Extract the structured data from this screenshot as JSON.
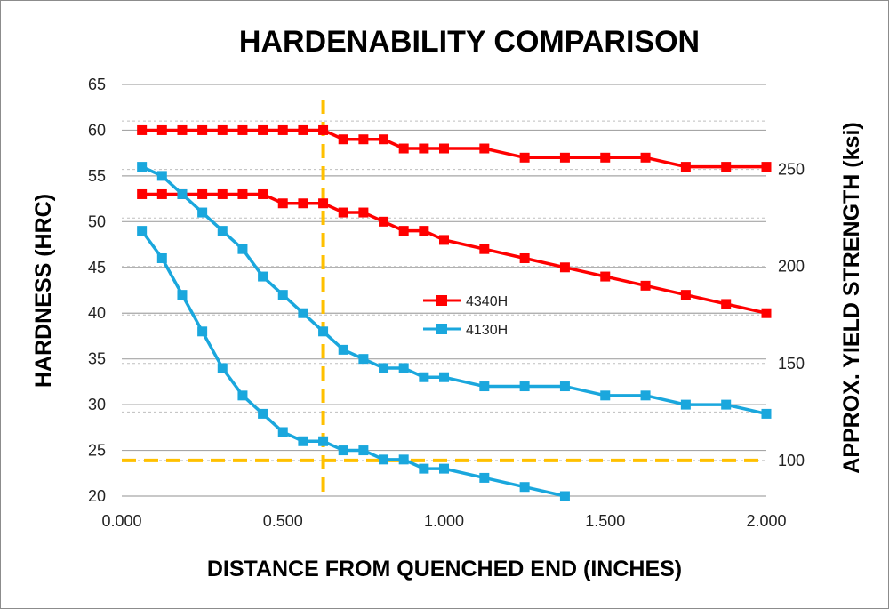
{
  "chart_data": {
    "type": "line",
    "title": "HARDENABILITY COMPARISON",
    "xlabel": "DISTANCE FROM QUENCHED END (INCHES)",
    "ylabel": "HARDNESS (HRC)",
    "y2label": "APPROX. YIELD STRENGTH  (ksi)",
    "xlim": [
      0,
      2
    ],
    "ylim": [
      20,
      65
    ],
    "x_ticks": [
      "0.000",
      "0.500",
      "1.000",
      "1.500",
      "2.000"
    ],
    "x_tick_values": [
      0,
      0.5,
      1.0,
      1.5,
      2.0
    ],
    "y_ticks": [
      20,
      25,
      30,
      35,
      40,
      45,
      50,
      55,
      60,
      65
    ],
    "y2_ticks": [
      {
        "label": "100",
        "hrc": 23.9
      },
      {
        "label": "150",
        "hrc": 34.5
      },
      {
        "label": "200",
        "hrc": 45.1
      },
      {
        "label": "250",
        "hrc": 55.7
      }
    ],
    "grid": true,
    "legend_position": "center",
    "reference_lines": {
      "vertical_x": 0.625,
      "horizontal_y": 23.9,
      "color": "#ffc000"
    },
    "series": [
      {
        "name": "4340H",
        "color": "#ff0000",
        "bands": [
          {
            "x": [
              0.0625,
              0.125,
              0.1875,
              0.25,
              0.3125,
              0.375,
              0.4375,
              0.5,
              0.5625,
              0.625,
              0.6875,
              0.75,
              0.8125,
              0.875,
              0.9375,
              1.0,
              1.125,
              1.25,
              1.375,
              1.5,
              1.625,
              1.75,
              1.875,
              2.0
            ],
            "y": [
              60,
              60,
              60,
              60,
              60,
              60,
              60,
              60,
              60,
              60,
              59,
              59,
              59,
              58,
              58,
              58,
              58,
              57,
              57,
              57,
              57,
              56,
              56,
              56
            ]
          },
          {
            "x": [
              0.0625,
              0.125,
              0.1875,
              0.25,
              0.3125,
              0.375,
              0.4375,
              0.5,
              0.5625,
              0.625,
              0.6875,
              0.75,
              0.8125,
              0.875,
              0.9375,
              1.0,
              1.125,
              1.25,
              1.375,
              1.5,
              1.625,
              1.75,
              1.875,
              2.0
            ],
            "y": [
              53,
              53,
              53,
              53,
              53,
              53,
              53,
              52,
              52,
              52,
              51,
              51,
              50,
              49,
              49,
              48,
              47,
              46,
              45,
              44,
              43,
              42,
              41,
              40
            ]
          }
        ]
      },
      {
        "name": "4130H",
        "color": "#1aa7dd",
        "bands": [
          {
            "x": [
              0.0625,
              0.125,
              0.1875,
              0.25,
              0.3125,
              0.375,
              0.4375,
              0.5,
              0.5625,
              0.625,
              0.6875,
              0.75,
              0.8125,
              0.875,
              0.9375,
              1.0,
              1.125,
              1.25,
              1.375,
              1.5,
              1.625,
              1.75,
              1.875,
              2.0
            ],
            "y": [
              56,
              55,
              53,
              51,
              49,
              47,
              44,
              42,
              40,
              38,
              36,
              35,
              34,
              34,
              33,
              33,
              32,
              32,
              32,
              31,
              31,
              30,
              30,
              29
            ]
          },
          {
            "x": [
              0.0625,
              0.125,
              0.1875,
              0.25,
              0.3125,
              0.375,
              0.4375,
              0.5,
              0.5625,
              0.625,
              0.6875,
              0.75,
              0.8125,
              0.875,
              0.9375,
              1.0,
              1.125,
              1.25,
              1.375
            ],
            "y": [
              49,
              46,
              42,
              38,
              34,
              31,
              29,
              27,
              26,
              26,
              25,
              25,
              24,
              24,
              23,
              23,
              22,
              21,
              20
            ]
          }
        ]
      }
    ]
  }
}
